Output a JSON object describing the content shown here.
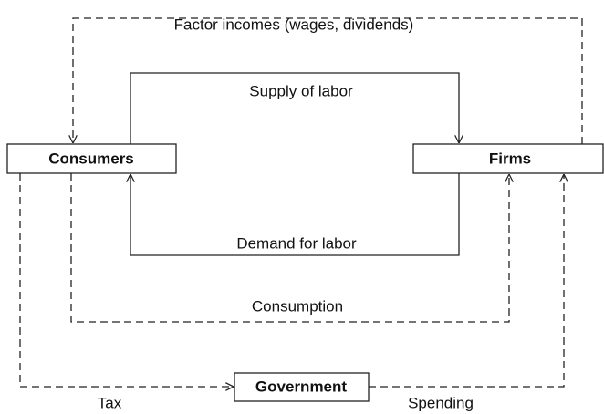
{
  "nodes": [
    {
      "label": "Consumers"
    },
    {
      "label": "Firms"
    },
    {
      "label": "Government"
    }
  ],
  "flows": [
    {
      "label": "Factor incomes (wages, dividends)"
    },
    {
      "label": "Supply of labor"
    },
    {
      "label": "Demand for labor"
    },
    {
      "label": "Consumption"
    },
    {
      "label": "Tax"
    },
    {
      "label": "Spending"
    }
  ]
}
